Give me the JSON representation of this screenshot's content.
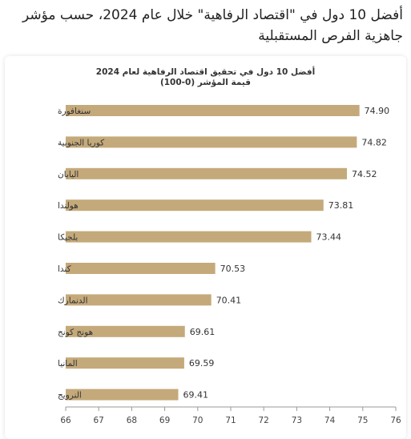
{
  "headline": "أفضل 10 دول في \"اقتصاد الرفاهية\" خلال عام 2024، حسب مؤشر جاهزية الفرص المستقبلية",
  "chart_data": {
    "type": "bar",
    "orientation": "horizontal",
    "title": "أفضل 10 دول في تحقيق اقتصاد الرفاهية لعام 2024",
    "subtitle": "قيمة المؤشر (0-100)",
    "categories": [
      "سنغافورة",
      "كوريا الجنوبية",
      "اليابان",
      "هولندا",
      "بلجيكا",
      "كندا",
      "الدنمارك",
      "هونج كونج",
      "المانيا",
      "النرويج"
    ],
    "values": [
      74.9,
      74.82,
      74.52,
      73.81,
      73.44,
      70.53,
      70.41,
      69.61,
      69.59,
      69.41
    ],
    "value_labels": [
      "74.90",
      "74.82",
      "74.52",
      "73.81",
      "73.44",
      "70.53",
      "70.41",
      "69.61",
      "69.59",
      "69.41"
    ],
    "xlim": [
      66,
      76
    ],
    "xticks": [
      66,
      67,
      68,
      69,
      70,
      71,
      72,
      73,
      74,
      75,
      76
    ],
    "bar_color": "#c4a97a",
    "grid": false,
    "legend": "none"
  }
}
